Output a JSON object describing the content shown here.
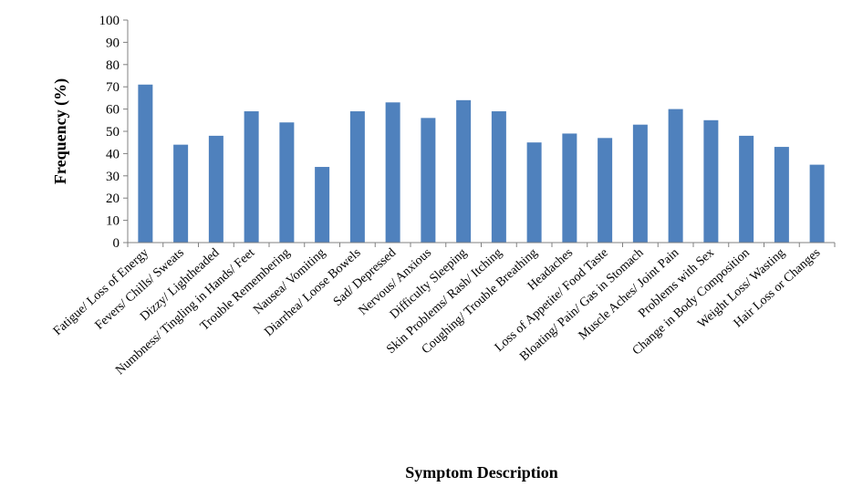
{
  "chart_data": {
    "type": "bar",
    "title": "",
    "xlabel": "Symptom Description",
    "ylabel": "Frequency (%)",
    "ylim": [
      0,
      100
    ],
    "yticks": [
      0,
      10,
      20,
      30,
      40,
      50,
      60,
      70,
      80,
      90,
      100
    ],
    "grid": false,
    "bar_color": "#4f81bd",
    "categories": [
      "Fatigue/ Loss of Energy",
      "Fevers/ Chills/ Sweats",
      "Dizzy/ Lightheaded",
      "Numbness/ Tingling in Hands/ Feet",
      "Trouble Remembering",
      "Nausea/ Vomiting",
      "Diarrhea/ Loose Bowels",
      "Sad/ Depressed",
      "Nervous/ Anxious",
      "Difficulty Sleeping",
      "Skin Problems/ Rash/ Itching",
      "Coughing/ Trouble Breathing",
      "Headaches",
      "Loss of Appetite/ Food Taste",
      "Bloating/ Pain/ Gas in Stomach",
      "Muscle Aches/ Joint Pain",
      "Problems with Sex",
      "Change in Body Composition",
      "Weight Loss/ Wasting",
      "Hair Loss or Changes"
    ],
    "values": [
      71,
      44,
      48,
      59,
      54,
      34,
      59,
      63,
      56,
      64,
      59,
      45,
      49,
      47,
      53,
      60,
      55,
      48,
      43,
      35
    ]
  }
}
